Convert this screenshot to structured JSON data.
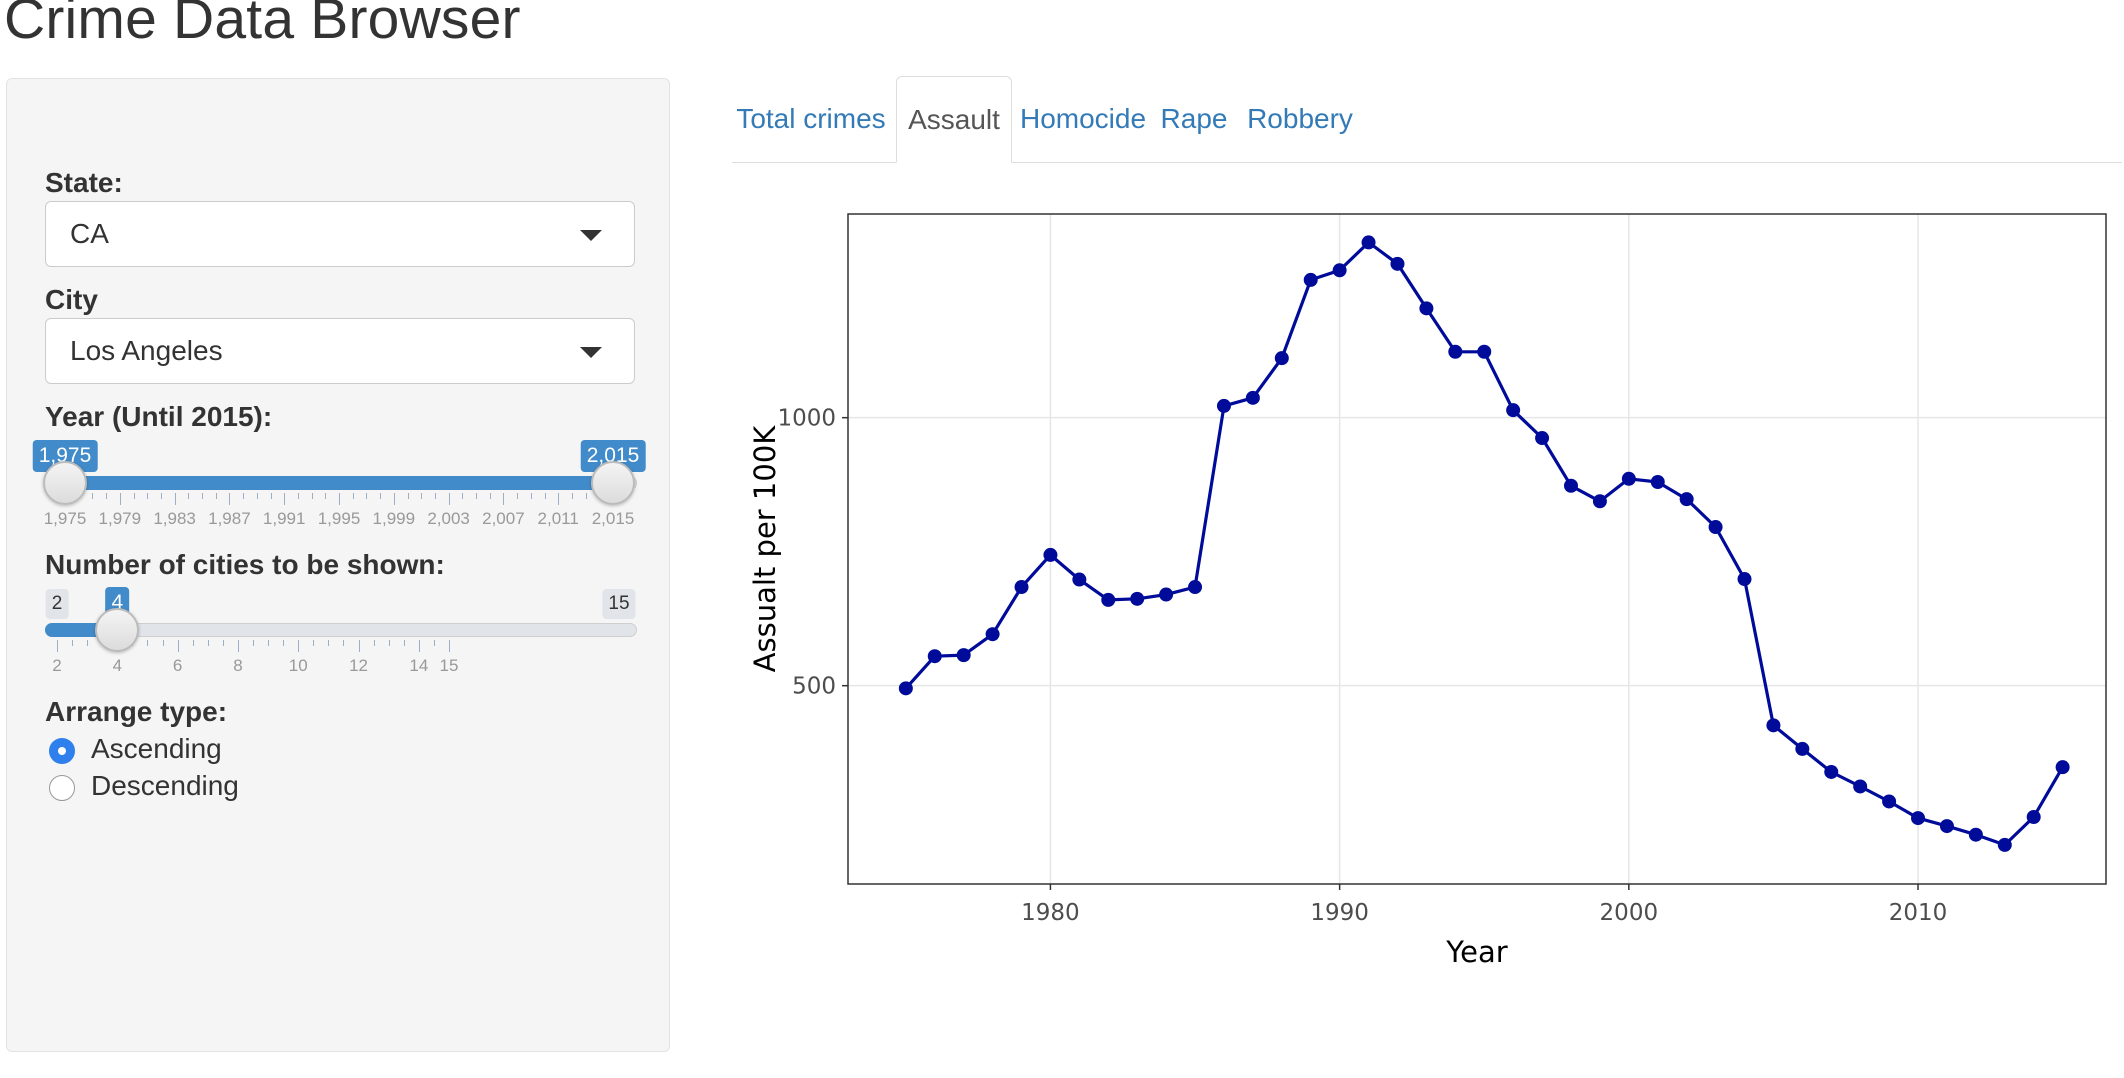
{
  "app": {
    "title": "Crime Data Browser"
  },
  "sidebar": {
    "state": {
      "label": "State:",
      "value": "CA"
    },
    "city": {
      "label": "City",
      "value": "Los Angeles"
    },
    "year_slider": {
      "label": "Year (Until 2015):",
      "from_label": "1,975",
      "to_label": "2,015",
      "min": 1975,
      "max": 2015,
      "from": 1975,
      "to": 2015,
      "tick_labels": [
        "1,975",
        "1,979",
        "1,983",
        "1,987",
        "1,991",
        "1,995",
        "1,999",
        "2,003",
        "2,007",
        "2,011",
        "2,015"
      ]
    },
    "cities_slider": {
      "label": "Number of cities to be shown:",
      "min_label": "2",
      "max_label": "15",
      "value_label": "4",
      "min": 2,
      "max": 15,
      "value": 4,
      "tick_labels": [
        "2",
        "4",
        "6",
        "8",
        "10",
        "12",
        "14",
        "15"
      ]
    },
    "arrange": {
      "label": "Arrange type:",
      "options": [
        {
          "label": "Ascending",
          "checked": true
        },
        {
          "label": "Descending",
          "checked": false
        }
      ]
    }
  },
  "tabs": [
    {
      "label": "Total crimes",
      "active": false
    },
    {
      "label": "Assault",
      "active": true
    },
    {
      "label": "Homocide",
      "active": false
    },
    {
      "label": "Rape",
      "active": false
    },
    {
      "label": "Robbery",
      "active": false
    }
  ],
  "chart_data": {
    "type": "line",
    "title": "",
    "xlabel": "Year",
    "ylabel": "Assualt per 100K",
    "xlim": [
      1973,
      2016.5
    ],
    "ylim": [
      130,
      1380
    ],
    "xticks": [
      1980,
      1990,
      2000,
      2010
    ],
    "yticks": [
      500,
      1000
    ],
    "grid": true,
    "legend": "none",
    "line_color": "#000b9a",
    "series": [
      {
        "x": [
          1975,
          1976,
          1977,
          1978,
          1979,
          1980,
          1981,
          1982,
          1983,
          1984,
          1985,
          1986,
          1987,
          1988,
          1989,
          1990,
          1991,
          1992,
          1993,
          1994,
          1995,
          1996,
          1997,
          1998,
          1999,
          2000,
          2001,
          2002,
          2003,
          2004,
          2005,
          2006,
          2007,
          2008,
          2009,
          2010,
          2011,
          2012,
          2013,
          2014,
          2015
        ],
        "y": [
          495,
          555,
          557,
          596,
          684,
          744,
          698,
          660,
          662,
          670,
          684,
          1022,
          1037,
          1111,
          1257,
          1275,
          1327,
          1287,
          1204,
          1123,
          1123,
          1014,
          962,
          873,
          844,
          886,
          880,
          848,
          796,
          699,
          426,
          382,
          339,
          312,
          284,
          253,
          238,
          222,
          203,
          255,
          348
        ]
      }
    ]
  }
}
